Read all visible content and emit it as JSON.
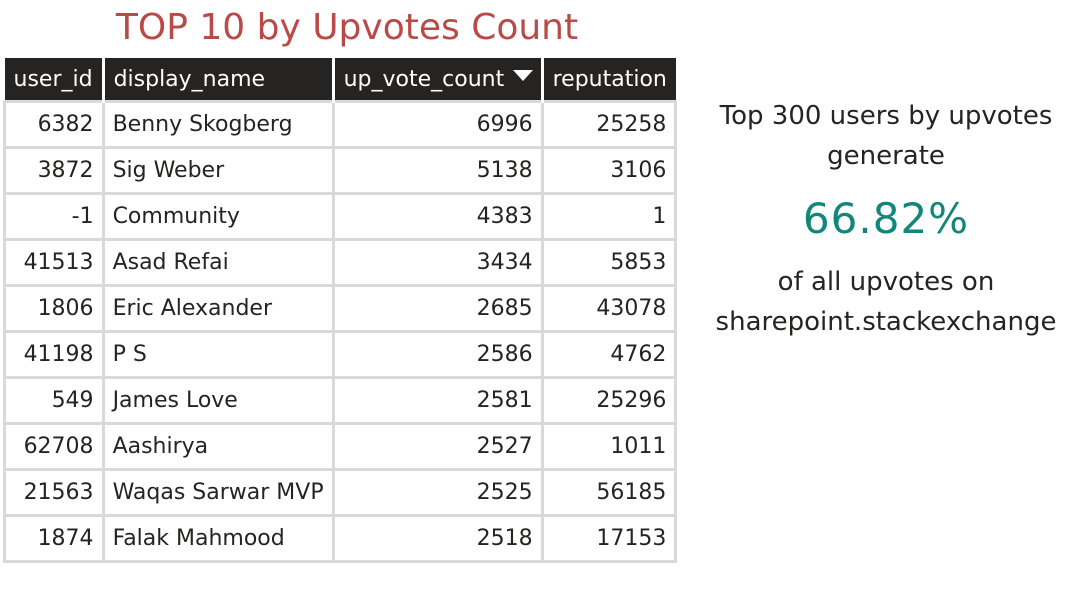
{
  "title": "TOP 10 by Upvotes Count",
  "table": {
    "columns": [
      "user_id",
      "display_name",
      "up_vote_count",
      "reputation"
    ],
    "sorted_column": "up_vote_count",
    "sort_direction": "descending",
    "rows": [
      {
        "user_id": "6382",
        "display_name": "Benny Skogberg",
        "up_vote_count": "6996",
        "reputation": "25258"
      },
      {
        "user_id": "3872",
        "display_name": "Sig Weber",
        "up_vote_count": "5138",
        "reputation": "3106"
      },
      {
        "user_id": "-1",
        "display_name": "Community",
        "up_vote_count": "4383",
        "reputation": "1"
      },
      {
        "user_id": "41513",
        "display_name": "Asad Refai",
        "up_vote_count": "3434",
        "reputation": "5853"
      },
      {
        "user_id": "1806",
        "display_name": "Eric Alexander",
        "up_vote_count": "2685",
        "reputation": "43078"
      },
      {
        "user_id": "41198",
        "display_name": "P S",
        "up_vote_count": "2586",
        "reputation": "4762"
      },
      {
        "user_id": "549",
        "display_name": "James Love",
        "up_vote_count": "2581",
        "reputation": "25296"
      },
      {
        "user_id": "62708",
        "display_name": "Aashirya",
        "up_vote_count": "2527",
        "reputation": "1011"
      },
      {
        "user_id": "21563",
        "display_name": "Waqas Sarwar MVP",
        "up_vote_count": "2525",
        "reputation": "56185"
      },
      {
        "user_id": "1874",
        "display_name": "Falak Mahmood",
        "up_vote_count": "2518",
        "reputation": "17153"
      }
    ]
  },
  "card": {
    "pre_text": "Top 300 users by upvotes generate",
    "value": "66.82%",
    "post_text": "of all upvotes on sharepoint.stackexchange"
  },
  "colors": {
    "title": "#b94a48",
    "header_bg": "#252423",
    "card_value": "#11877a",
    "grid_border": "#d9d9d9"
  },
  "icons": {
    "sort": "sort-descending-triangle-icon"
  }
}
